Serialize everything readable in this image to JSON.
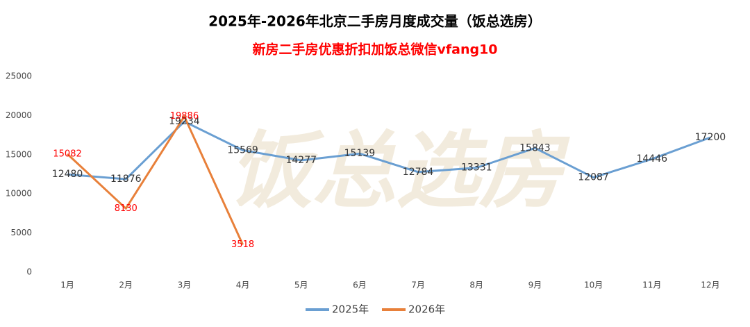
{
  "chart_data": {
    "type": "line",
    "title": "2025年-2026年北京二手房月度成交量（饭总选房）",
    "subtitle": "新房二手房优惠折扣加饭总微信vfang10",
    "watermark": "饭总选房",
    "categories": [
      "1月",
      "2月",
      "3月",
      "4月",
      "5月",
      "6月",
      "7月",
      "8月",
      "9月",
      "10月",
      "11月",
      "12月"
    ],
    "series": [
      {
        "name": "2025年",
        "color": "#6a9fd2",
        "label_color": "#333333",
        "values": [
          12480,
          11876,
          19234,
          15569,
          14277,
          15139,
          12784,
          13331,
          15843,
          12087,
          14446,
          17200
        ]
      },
      {
        "name": "2026年",
        "color": "#e8803a",
        "label_color": "#ff0000",
        "values": [
          15082,
          8130,
          19886,
          3518,
          null,
          null,
          null,
          null,
          null,
          null,
          null,
          null
        ]
      }
    ],
    "ylim": [
      0,
      25000
    ],
    "yticks": [
      0,
      5000,
      10000,
      15000,
      20000,
      25000
    ],
    "grid": false,
    "legend": "bottom"
  }
}
